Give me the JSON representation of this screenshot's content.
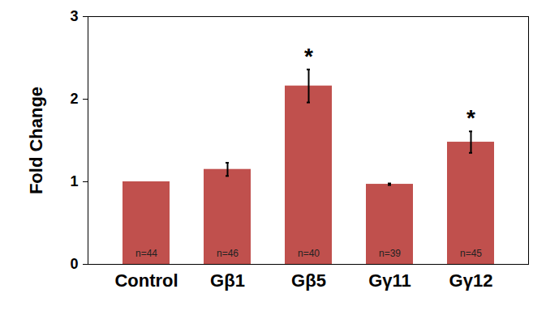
{
  "chart_data": {
    "type": "bar",
    "categories": [
      "Control",
      "Gβ1",
      "Gβ5",
      "Gγ11",
      "Gγ12"
    ],
    "values": [
      1.0,
      1.15,
      2.16,
      0.97,
      1.48
    ],
    "errors": [
      null,
      0.08,
      0.2,
      0.01,
      0.13
    ],
    "bar_labels": [
      "n=44",
      "n=46",
      "n=40",
      "n=39",
      "n=45"
    ],
    "annotations": [
      {
        "category": "Gβ5",
        "text": "*"
      },
      {
        "category": "Gγ12",
        "text": "*"
      }
    ],
    "y_label": "Fold Change",
    "color": "#c0504d",
    "ylim": [
      0,
      3
    ],
    "yticks": [
      0,
      1,
      2,
      3
    ],
    "grid": false
  }
}
